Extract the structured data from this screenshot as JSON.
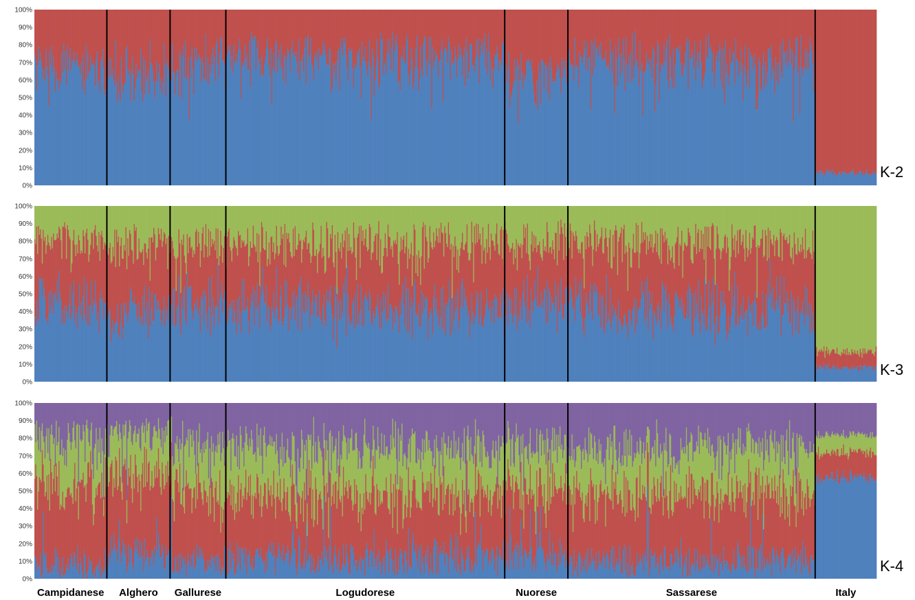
{
  "chart_data": {
    "type": "bar",
    "stacked": true,
    "y_tick_labels": [
      "0%",
      "10%",
      "20%",
      "30%",
      "40%",
      "50%",
      "60%",
      "70%",
      "80%",
      "90%",
      "100%"
    ],
    "ylim": [
      0,
      100
    ],
    "populations": [
      {
        "name": "Campidanese",
        "bars": 78
      },
      {
        "name": "Alghero",
        "bars": 68
      },
      {
        "name": "Gallurese",
        "bars": 60
      },
      {
        "name": "Logudorese",
        "bars": 300
      },
      {
        "name": "Nuorese",
        "bars": 68
      },
      {
        "name": "Sassarese",
        "bars": 266
      },
      {
        "name": "Italy",
        "bars": 66
      }
    ],
    "panels": [
      {
        "label": "K-2",
        "colors": [
          "#4F81BD",
          "#C0504D"
        ],
        "mean_proportions": {
          "Campidanese": [
            0.68,
            0.32
          ],
          "Alghero": [
            0.62,
            0.38
          ],
          "Gallurese": [
            0.7,
            0.3
          ],
          "Logudorese": [
            0.72,
            0.28
          ],
          "Nuorese": [
            0.62,
            0.38
          ],
          "Sassarese": [
            0.7,
            0.3
          ],
          "Italy": [
            0.07,
            0.93
          ]
        }
      },
      {
        "label": "K-3",
        "colors": [
          "#4F81BD",
          "#C0504D",
          "#9BBB59"
        ],
        "mean_proportions": {
          "Campidanese": [
            0.45,
            0.33,
            0.22
          ],
          "Alghero": [
            0.4,
            0.37,
            0.23
          ],
          "Gallurese": [
            0.45,
            0.32,
            0.23
          ],
          "Logudorese": [
            0.42,
            0.35,
            0.23
          ],
          "Nuorese": [
            0.45,
            0.33,
            0.22
          ],
          "Sassarese": [
            0.42,
            0.36,
            0.22
          ],
          "Italy": [
            0.08,
            0.09,
            0.83
          ]
        }
      },
      {
        "label": "K-4",
        "colors": [
          "#4F81BD",
          "#C0504D",
          "#9BBB59",
          "#8064A2"
        ],
        "mean_proportions": {
          "Campidanese": [
            0.08,
            0.45,
            0.25,
            0.22
          ],
          "Alghero": [
            0.14,
            0.42,
            0.24,
            0.2
          ],
          "Gallurese": [
            0.1,
            0.4,
            0.26,
            0.24
          ],
          "Logudorese": [
            0.12,
            0.36,
            0.26,
            0.26
          ],
          "Nuorese": [
            0.14,
            0.38,
            0.24,
            0.24
          ],
          "Sassarese": [
            0.1,
            0.38,
            0.26,
            0.26
          ],
          "Italy": [
            0.58,
            0.14,
            0.1,
            0.18
          ]
        }
      }
    ]
  }
}
